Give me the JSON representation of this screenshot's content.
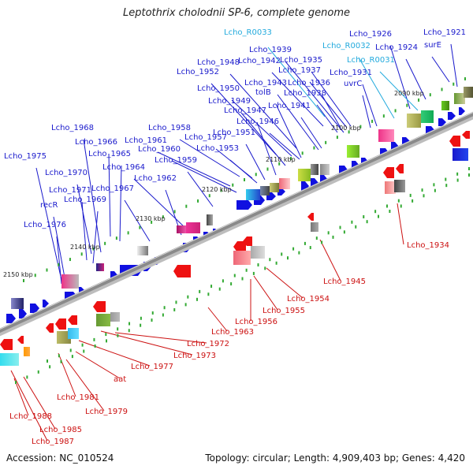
{
  "title": "Leptothrix cholodnii SP-6, complete genome",
  "footer": {
    "accession": "Accession: NC_010524",
    "summary": "Topology: circular; Length: 4,909,403 bp; Genes: 4,420"
  },
  "colors": {
    "upper_label": "#1a1acc",
    "rna_label": "#22aadd",
    "lower_label": "#cc1111",
    "backbone": "#8a8a8a"
  },
  "ticks": [
    "2090 kbp",
    "2100 kbp",
    "2110 kbp",
    "2120 kbp",
    "2130 kbp",
    "2140 kbp",
    "2150 kbp"
  ],
  "upper_labels": [
    {
      "text": "Lcho_R0033",
      "kind": "rna"
    },
    {
      "text": "Lcho_1926",
      "kind": "gene"
    },
    {
      "text": "Lcho_1921",
      "kind": "gene"
    },
    {
      "text": "Lcho_1939",
      "kind": "gene"
    },
    {
      "text": "Lcho_R0032",
      "kind": "rna"
    },
    {
      "text": "Lcho_1924",
      "kind": "gene"
    },
    {
      "text": "surE",
      "kind": "gene"
    },
    {
      "text": "Lcho_1948",
      "kind": "gene"
    },
    {
      "text": "Lcho_1942",
      "kind": "gene"
    },
    {
      "text": "Lcho_1935",
      "kind": "gene"
    },
    {
      "text": "Lcho_R0031",
      "kind": "rna"
    },
    {
      "text": "Lcho_1952",
      "kind": "gene"
    },
    {
      "text": "Lcho_1937",
      "kind": "gene"
    },
    {
      "text": "Lcho_1931",
      "kind": "gene"
    },
    {
      "text": "Lcho_1943",
      "kind": "gene"
    },
    {
      "text": "Lcho_1936",
      "kind": "gene"
    },
    {
      "text": "uvrC",
      "kind": "gene"
    },
    {
      "text": "Lcho_1950",
      "kind": "gene"
    },
    {
      "text": "tolB",
      "kind": "gene"
    },
    {
      "text": "Lcho_1938",
      "kind": "gene"
    },
    {
      "text": "Lcho_1949",
      "kind": "gene"
    },
    {
      "text": "Lcho_1941",
      "kind": "gene"
    },
    {
      "text": "Lcho_1947",
      "kind": "gene"
    },
    {
      "text": "Lcho_1946",
      "kind": "gene"
    },
    {
      "text": "Lcho_1958",
      "kind": "gene"
    },
    {
      "text": "Lcho_1968",
      "kind": "gene"
    },
    {
      "text": "Lcho_1951",
      "kind": "gene"
    },
    {
      "text": "Lcho_1961",
      "kind": "gene"
    },
    {
      "text": "Lcho_1957",
      "kind": "gene"
    },
    {
      "text": "Lcho_1966",
      "kind": "gene"
    },
    {
      "text": "Lcho_1960",
      "kind": "gene"
    },
    {
      "text": "Lcho_1953",
      "kind": "gene"
    },
    {
      "text": "Lcho_1965",
      "kind": "gene"
    },
    {
      "text": "Lcho_1975",
      "kind": "gene"
    },
    {
      "text": "Lcho_1959",
      "kind": "gene"
    },
    {
      "text": "Lcho_1964",
      "kind": "gene"
    },
    {
      "text": "Lcho_1970",
      "kind": "gene"
    },
    {
      "text": "Lcho_1962",
      "kind": "gene"
    },
    {
      "text": "Lcho_1967",
      "kind": "gene"
    },
    {
      "text": "Lcho_1971",
      "kind": "gene"
    },
    {
      "text": "Lcho_1969",
      "kind": "gene"
    },
    {
      "text": "recR",
      "kind": "gene"
    },
    {
      "text": "Lcho_1976",
      "kind": "gene"
    }
  ],
  "lower_labels": [
    {
      "text": "Lcho_1934"
    },
    {
      "text": "Lcho_1945"
    },
    {
      "text": "Lcho_1954"
    },
    {
      "text": "Lcho_1955"
    },
    {
      "text": "Lcho_1956"
    },
    {
      "text": "Lcho_1963"
    },
    {
      "text": "Lcho_1972"
    },
    {
      "text": "Lcho_1973"
    },
    {
      "text": "Lcho_1977"
    },
    {
      "text": "aat"
    },
    {
      "text": "Lcho_1981"
    },
    {
      "text": "Lcho_1979"
    },
    {
      "text": "Lcho_1988"
    },
    {
      "text": "Lcho_1985"
    },
    {
      "text": "Lcho_1987"
    }
  ]
}
